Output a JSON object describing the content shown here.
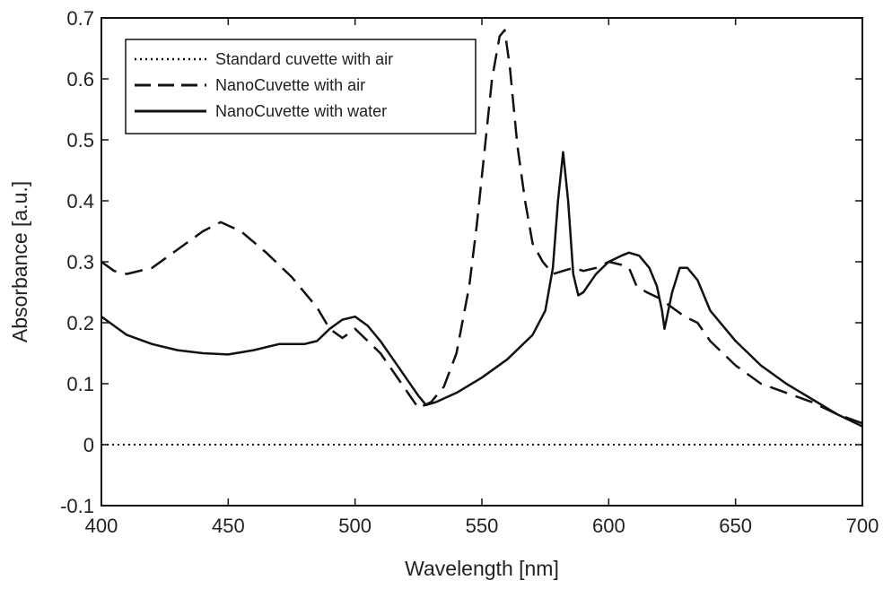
{
  "chart_data": {
    "type": "line",
    "title": "",
    "xlabel": "Wavelength [nm]",
    "ylabel": "Absorbance [a.u.]",
    "xlim": [
      400,
      700
    ],
    "ylim": [
      -0.1,
      0.7
    ],
    "xticks": [
      400,
      450,
      500,
      550,
      600,
      650,
      700
    ],
    "yticks": [
      -0.1,
      0,
      0.1,
      0.2,
      0.3,
      0.4,
      0.5,
      0.6,
      0.7
    ],
    "xtick_labels": [
      "400",
      "450",
      "500",
      "550",
      "600",
      "650",
      "700"
    ],
    "ytick_labels": [
      "-0.1",
      "0",
      "0.1",
      "0.2",
      "0.3",
      "0.4",
      "0.5",
      "0.6",
      "0.7"
    ],
    "grid": false,
    "legend_position": "top-left",
    "series": [
      {
        "name": "Standard cuvette with air",
        "style": "dotted",
        "x": [
          400,
          450,
          500,
          550,
          600,
          650,
          700
        ],
        "y": [
          0.0,
          0.0,
          0.0,
          0.0,
          0.0,
          0.0,
          0.0
        ]
      },
      {
        "name": "NanoCuvette with air",
        "style": "dashed",
        "x": [
          400,
          405,
          410,
          420,
          430,
          440,
          447,
          455,
          465,
          475,
          485,
          490,
          495,
          500,
          505,
          510,
          515,
          520,
          525,
          530,
          535,
          540,
          545,
          548,
          551,
          554,
          557,
          559,
          561,
          564,
          567,
          570,
          574,
          578,
          582,
          586,
          590,
          595,
          600,
          605,
          608,
          611,
          615,
          620,
          625,
          630,
          635,
          640,
          645,
          650,
          660,
          670,
          680,
          690,
          700
        ],
        "y": [
          0.3,
          0.285,
          0.28,
          0.29,
          0.32,
          0.35,
          0.365,
          0.35,
          0.315,
          0.275,
          0.225,
          0.19,
          0.175,
          0.19,
          0.17,
          0.15,
          0.12,
          0.09,
          0.06,
          0.07,
          0.095,
          0.15,
          0.26,
          0.36,
          0.48,
          0.6,
          0.67,
          0.68,
          0.62,
          0.49,
          0.4,
          0.33,
          0.3,
          0.28,
          0.285,
          0.29,
          0.285,
          0.29,
          0.3,
          0.295,
          0.29,
          0.26,
          0.25,
          0.24,
          0.225,
          0.21,
          0.2,
          0.17,
          0.15,
          0.13,
          0.1,
          0.085,
          0.07,
          0.05,
          0.035
        ]
      },
      {
        "name": "NanoCuvette with water",
        "style": "solid",
        "x": [
          400,
          410,
          420,
          430,
          440,
          450,
          460,
          470,
          480,
          485,
          490,
          495,
          500,
          505,
          510,
          515,
          520,
          525,
          528,
          532,
          540,
          550,
          560,
          570,
          575,
          578,
          580,
          582,
          584,
          586,
          588,
          590,
          595,
          600,
          605,
          608,
          612,
          616,
          619,
          621,
          622,
          623,
          625,
          628,
          631,
          635,
          640,
          650,
          660,
          670,
          680,
          690,
          700
        ],
        "y": [
          0.21,
          0.18,
          0.165,
          0.155,
          0.15,
          0.148,
          0.155,
          0.165,
          0.165,
          0.17,
          0.19,
          0.205,
          0.21,
          0.195,
          0.17,
          0.14,
          0.11,
          0.08,
          0.065,
          0.07,
          0.085,
          0.11,
          0.14,
          0.18,
          0.22,
          0.29,
          0.4,
          0.48,
          0.4,
          0.28,
          0.245,
          0.25,
          0.28,
          0.3,
          0.31,
          0.315,
          0.31,
          0.29,
          0.26,
          0.22,
          0.19,
          0.21,
          0.25,
          0.29,
          0.29,
          0.27,
          0.22,
          0.17,
          0.13,
          0.1,
          0.075,
          0.05,
          0.03
        ]
      }
    ]
  }
}
